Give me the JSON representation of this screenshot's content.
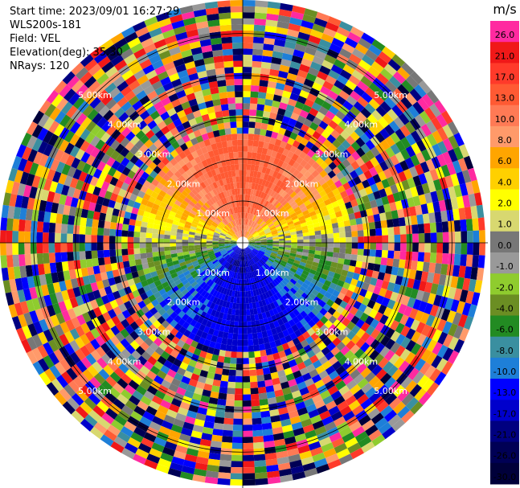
{
  "header": {
    "start_time": "Start time: 2023/09/01 16:27:29",
    "instrument": "WLS200s-181",
    "field": "Field: VEL",
    "elevation": "Elevation(deg): 35.30",
    "nrays": "NRays: 120"
  },
  "colorbar": {
    "unit": "m/s",
    "ticks": [
      "26.0",
      "21.0",
      "17.0",
      "13.0",
      "10.0",
      "8.0",
      "6.0",
      "4.0",
      "2.0",
      "1.0",
      "0.0",
      "-1.0",
      "-2.0",
      "-4.0",
      "-6.0",
      "-8.0",
      "-10.0",
      "-13.0",
      "-17.0",
      "-21.0",
      "-26.0",
      "-30.0"
    ],
    "colors": [
      "#ff2aa0",
      "#f01818",
      "#ff3a2a",
      "#ff5a33",
      "#ff7a55",
      "#ff9a6a",
      "#ffa500",
      "#ffd000",
      "#ffff00",
      "#d8d870",
      "#777777",
      "#999999",
      "#8fcc2e",
      "#6b8e23",
      "#228b22",
      "#3a8fa0",
      "#1e7fd8",
      "#0000ff",
      "#0000cc",
      "#000080",
      "#000055",
      "#00003a"
    ]
  },
  "chart_data": {
    "type": "heatmap",
    "title": "",
    "field": "VEL",
    "unit": "m/s",
    "nrays": 120,
    "range_rings_km": [
      1.0,
      2.0,
      3.0,
      4.0,
      5.0
    ],
    "range_labels": [
      "1.00km",
      "2.00km",
      "3.00km",
      "4.00km",
      "5.00km"
    ],
    "max_range_km": 5.8,
    "color_levels": [
      -30,
      -26,
      -21,
      -17,
      -13,
      -10,
      -8,
      -6,
      -4,
      -2,
      -1,
      0,
      1,
      2,
      4,
      6,
      8,
      10,
      13,
      17,
      21,
      26
    ],
    "pattern": "Near range (<2.5 km): positive velocities (red/orange/yellow) toward north, negative velocities (blue) toward south; beyond about 2.5 km the field is noise with random colors."
  }
}
